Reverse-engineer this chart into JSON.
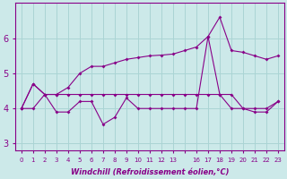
{
  "xlabel": "Windchill (Refroidissement éolien,°C)",
  "bg_color": "#cce9e9",
  "line_color": "#880088",
  "grid_color": "#aad4d4",
  "x_labels": [
    "0",
    "1",
    "2",
    "3",
    "4",
    "5",
    "6",
    "7",
    "8",
    "9",
    "10",
    "11",
    "12",
    "13",
    "",
    "16",
    "17",
    "18",
    "19",
    "20",
    "21",
    "22",
    "23"
  ],
  "ylim": [
    2.8,
    7.0
  ],
  "xlim": [
    -0.5,
    22.5
  ],
  "yticks": [
    3,
    4,
    5,
    6
  ],
  "flat_line_y": [
    4.0,
    4.0,
    4.4,
    4.4,
    4.4,
    4.4,
    4.4,
    4.4,
    4.4,
    4.4,
    4.4,
    4.4,
    4.4,
    4.4,
    4.4,
    4.4,
    4.4,
    4.4,
    4.4,
    4.0,
    4.0,
    4.0,
    4.2
  ],
  "upper_line_x": [
    0,
    1,
    2,
    3,
    4,
    5,
    6,
    7,
    8,
    9,
    10,
    11,
    12,
    13,
    14,
    15,
    16,
    17,
    18,
    19,
    20,
    21,
    22
  ],
  "upper_line_y": [
    4.0,
    4.7,
    4.4,
    4.4,
    4.6,
    5.0,
    5.2,
    5.2,
    5.3,
    5.4,
    5.45,
    5.5,
    5.52,
    5.55,
    5.65,
    5.75,
    6.05,
    6.6,
    5.65,
    5.6,
    5.5,
    5.4,
    5.5
  ],
  "lower_line_x": [
    0,
    1,
    2,
    3,
    4,
    5,
    6,
    7,
    8,
    9,
    10,
    11,
    12,
    13,
    14,
    15,
    16,
    17,
    18,
    19,
    20,
    21,
    22
  ],
  "lower_line_y": [
    4.0,
    4.7,
    4.4,
    3.9,
    3.9,
    4.2,
    4.2,
    3.55,
    3.75,
    4.3,
    4.0,
    4.0,
    4.0,
    4.0,
    4.0,
    4.0,
    6.05,
    4.4,
    4.0,
    4.0,
    3.9,
    3.9,
    4.2
  ]
}
